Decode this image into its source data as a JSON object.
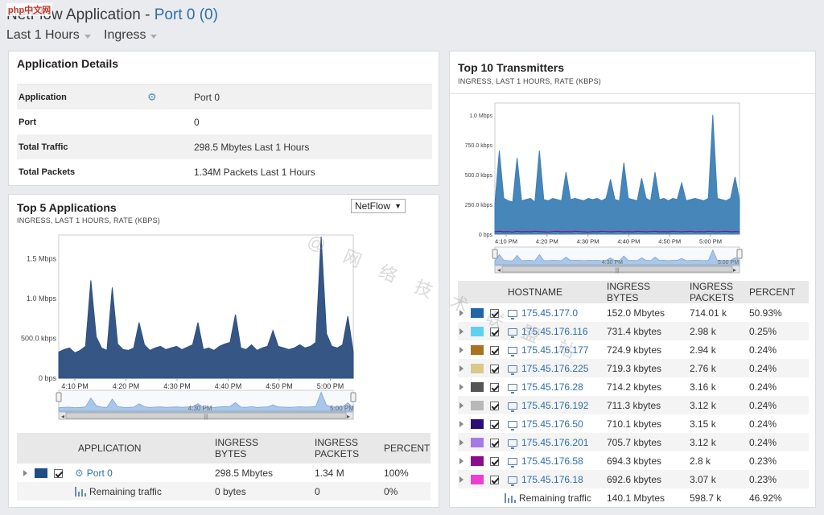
{
  "header": {
    "logo": "php中文网",
    "title_prefix": "NetFlow Application - ",
    "title_port": "Port 0 (0)",
    "time_filter": "Last 1 Hours",
    "direction_filter": "Ingress"
  },
  "details": {
    "title": "Application Details",
    "rows": [
      {
        "label": "Application",
        "value": "Port 0"
      },
      {
        "label": "Port",
        "value": "0"
      },
      {
        "label": "Total Traffic",
        "value": "298.5 Mbytes Last 1 Hours"
      },
      {
        "label": "Total Packets",
        "value": "1.34M Packets  Last 1 Hours"
      }
    ]
  },
  "top5": {
    "title": "Top 5 Applications",
    "subtitle": "INGRESS, LAST 1 HOURS, RATE (KBPS)",
    "select_value": "NetFlow",
    "columns": [
      "APPLICATION",
      "INGRESS BYTES",
      "INGRESS PACKETS",
      "PERCENT"
    ],
    "rows": [
      {
        "name": "Port 0",
        "bytes": "298.5 Mbytes",
        "packets": "1.34 M",
        "percent": "100%",
        "color": "#1f4e87"
      }
    ],
    "remaining": {
      "name": "Remaining traffic",
      "bytes": "0 bytes",
      "packets": "0",
      "percent": "0%"
    }
  },
  "top10": {
    "title": "Top 10 Transmitters",
    "subtitle": "INGRESS, LAST 1 HOURS, RATE (KBPS)",
    "columns": [
      "HOSTNAME",
      "INGRESS BYTES",
      "INGRESS PACKETS",
      "PERCENT"
    ],
    "rows": [
      {
        "host": "175.45.177.0",
        "bytes": "152.0 Mbytes",
        "packets": "714.01 k",
        "percent": "50.93%",
        "color": "#2166a8"
      },
      {
        "host": "175.45.176.116",
        "bytes": "731.4 kbytes",
        "packets": "2.98 k",
        "percent": "0.25%",
        "color": "#5fd1ef"
      },
      {
        "host": "175.45.176.177",
        "bytes": "724.9 kbytes",
        "packets": "2.94 k",
        "percent": "0.24%",
        "color": "#a8731f"
      },
      {
        "host": "175.45.176.225",
        "bytes": "719.3 kbytes",
        "packets": "2.76 k",
        "percent": "0.24%",
        "color": "#d9c98a"
      },
      {
        "host": "175.45.176.28",
        "bytes": "714.2 kbytes",
        "packets": "3.16 k",
        "percent": "0.24%",
        "color": "#555555"
      },
      {
        "host": "175.45.176.192",
        "bytes": "711.3 kbytes",
        "packets": "3.12 k",
        "percent": "0.24%",
        "color": "#b8b8b8"
      },
      {
        "host": "175.45.176.50",
        "bytes": "710.1 kbytes",
        "packets": "3.15 k",
        "percent": "0.24%",
        "color": "#2a0f7a"
      },
      {
        "host": "175.45.176.201",
        "bytes": "705.7 kbytes",
        "packets": "3.12 k",
        "percent": "0.24%",
        "color": "#a57ae8"
      },
      {
        "host": "175.45.176.58",
        "bytes": "694.3 kbytes",
        "packets": "2.8 k",
        "percent": "0.23%",
        "color": "#8a0d8a"
      },
      {
        "host": "175.45.176.18",
        "bytes": "692.6 kbytes",
        "packets": "3.07 k",
        "percent": "0.23%",
        "color": "#ea3fcf"
      }
    ],
    "remaining": {
      "name": "Remaining traffic",
      "bytes": "140.1 Mbytes",
      "packets": "598.7 k",
      "percent": "46.92%"
    }
  },
  "watermark": "@ 网 络 技 术 联 盟 站",
  "chart_data": [
    {
      "type": "area",
      "chart": "top5",
      "ylabel": "",
      "ylim": [
        0,
        1800
      ],
      "yticks": [
        {
          "v": 0,
          "label": "0 bps"
        },
        {
          "v": 500,
          "label": "500.0 kbps"
        },
        {
          "v": 1000,
          "label": "1.0 Mbps"
        },
        {
          "v": 1500,
          "label": "1.5 Mbps"
        }
      ],
      "xticks": [
        "4:10 PM",
        "4:20 PM",
        "4:30 PM",
        "4:40 PM",
        "4:50 PM",
        "5:00 PM"
      ],
      "navigator_label": "4:30 PM",
      "navigator_end_label": "5:00 PM",
      "series": [
        {
          "name": "Port 0",
          "color": "#2b4e7e",
          "values": [
            330,
            360,
            380,
            320,
            350,
            400,
            1230,
            520,
            380,
            350,
            1140,
            430,
            360,
            350,
            380,
            700,
            420,
            350,
            380,
            400,
            360,
            380,
            400,
            360,
            390,
            420,
            700,
            360,
            380,
            350,
            400,
            430,
            450,
            800,
            380,
            360,
            420,
            350,
            380,
            400,
            600,
            400,
            380,
            360,
            380,
            420,
            380,
            400,
            450,
            1780,
            560,
            400,
            380,
            420,
            780,
            330
          ]
        }
      ]
    },
    {
      "type": "area",
      "chart": "top10",
      "ylabel": "",
      "ylim": [
        0,
        1100
      ],
      "yticks": [
        {
          "v": 0,
          "label": "0 bps"
        },
        {
          "v": 250,
          "label": "250.0 kbps"
        },
        {
          "v": 500,
          "label": "500.0 kbps"
        },
        {
          "v": 750,
          "label": "750.0 kbps"
        },
        {
          "v": 1000,
          "label": "1.0 Mbps"
        }
      ],
      "xticks": [
        "4:10 PM",
        "4:20 PM",
        "4:30 PM",
        "4:40 PM",
        "4:50 PM",
        "5:00 PM"
      ],
      "navigator_label": "4:30 PM",
      "navigator_end_label": "5:00 PM",
      "series": [
        {
          "name": "175.45.177.0",
          "color": "#3d7fb5",
          "values": [
            260,
            700,
            300,
            280,
            270,
            640,
            280,
            290,
            300,
            270,
            700,
            290,
            280,
            300,
            290,
            280,
            520,
            290,
            300,
            290,
            280,
            300,
            290,
            300,
            280,
            300,
            460,
            290,
            280,
            600,
            300,
            290,
            280,
            470,
            300,
            280,
            520,
            290,
            300,
            280,
            300,
            290,
            430,
            280,
            290,
            300,
            290,
            280,
            300,
            1000,
            300,
            290,
            280,
            300,
            480,
            290
          ]
        },
        {
          "name": "175.45.176.116",
          "color": "#8a0d8a",
          "values": [
            20,
            25,
            20,
            22,
            18,
            25,
            20,
            22,
            20,
            25,
            22,
            20,
            18,
            22,
            25,
            20,
            22,
            20,
            25,
            22,
            20,
            18,
            22,
            20,
            25,
            22,
            20,
            22,
            25,
            20,
            22,
            20,
            25,
            22,
            20,
            22,
            25,
            20,
            22,
            20,
            25,
            22,
            20,
            22,
            25,
            20,
            22,
            20,
            25,
            22,
            20,
            22,
            25,
            20,
            22,
            20
          ]
        }
      ]
    }
  ]
}
